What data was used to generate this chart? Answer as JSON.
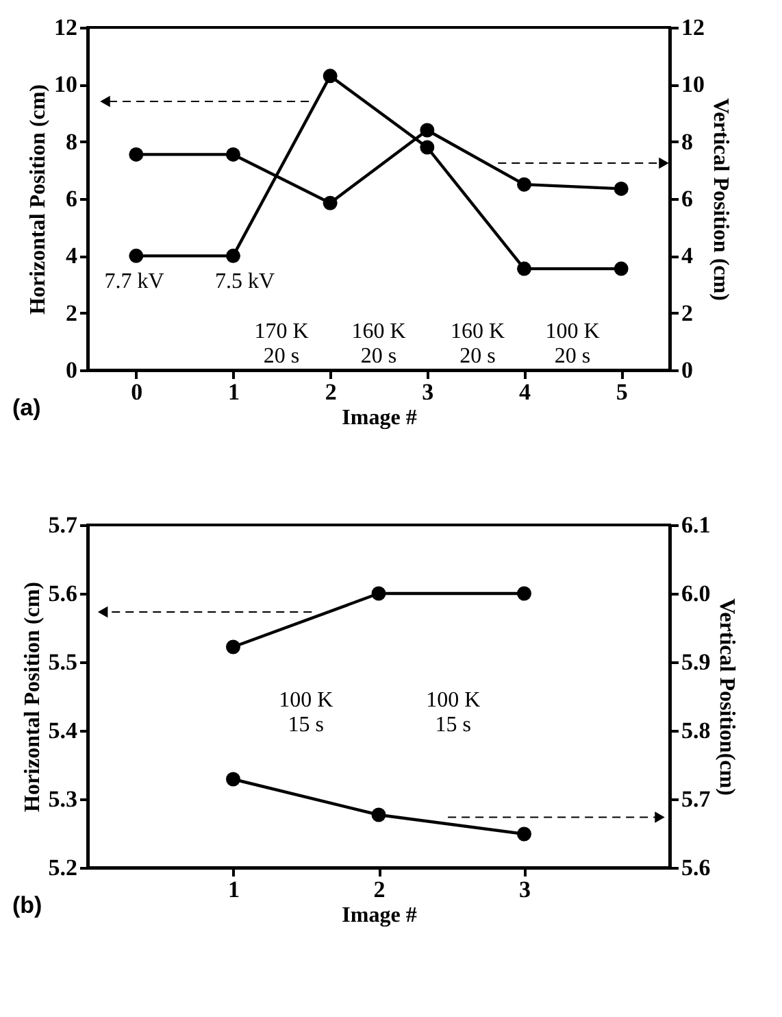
{
  "chart_data": [
    {
      "type": "line",
      "xlabel": "Image #",
      "ylabel": "Horizontal Position (cm)",
      "y2label": "Vertical Position (cm)",
      "x": [
        0,
        1,
        2,
        3,
        4,
        5
      ],
      "xlim": [
        -0.5,
        5.5
      ],
      "xticks": [
        0,
        1,
        2,
        3,
        4,
        5
      ],
      "ylim": [
        0,
        12
      ],
      "yticks": [
        0,
        2,
        4,
        6,
        8,
        10,
        12
      ],
      "y2lim": [
        0,
        12
      ],
      "y2ticks": [
        0,
        2,
        4,
        6,
        8,
        10,
        12
      ],
      "series": [
        {
          "color": "#000000",
          "values": [
            4.0,
            4.0,
            10.3,
            7.8,
            3.55,
            3.55
          ]
        },
        {
          "color": "#000000",
          "axis": "y2",
          "values": [
            7.55,
            7.55,
            5.85,
            8.4,
            6.5,
            6.35
          ]
        }
      ],
      "annotations": [
        "7.7 kV",
        "7.5 kV",
        "170 K\n20 s",
        "160 K\n20 s",
        "160 K\n20 s",
        "100 K\n20 s",
        "(a)"
      ],
      "marker": "circle",
      "grid": false
    },
    {
      "type": "line",
      "xlabel": "Image #",
      "ylabel": "Horizontal Position (cm)",
      "y2label": "Vertical Position(cm)",
      "x": [
        1,
        2,
        3
      ],
      "xlim": [
        0,
        4
      ],
      "xticks": [
        1,
        2,
        3
      ],
      "ylim": [
        5.2,
        5.7
      ],
      "yticks": [
        5.2,
        5.3,
        5.4,
        5.5,
        5.6,
        5.7
      ],
      "y2lim": [
        5.6,
        6.1
      ],
      "y2ticks": [
        5.6,
        5.7,
        5.8,
        5.9,
        {
          "value": 6,
          "label": "6.0"
        },
        6.1
      ],
      "series": [
        {
          "color": "#000000",
          "values": [
            5.522,
            5.6,
            5.6
          ]
        },
        {
          "color": "#000000",
          "axis": "y2",
          "values": [
            5.729,
            5.677,
            5.649
          ]
        }
      ],
      "annotations": [
        "100 K\n15 s",
        "100 K\n15 s",
        "(b)"
      ],
      "marker": "circle",
      "grid": false
    }
  ]
}
